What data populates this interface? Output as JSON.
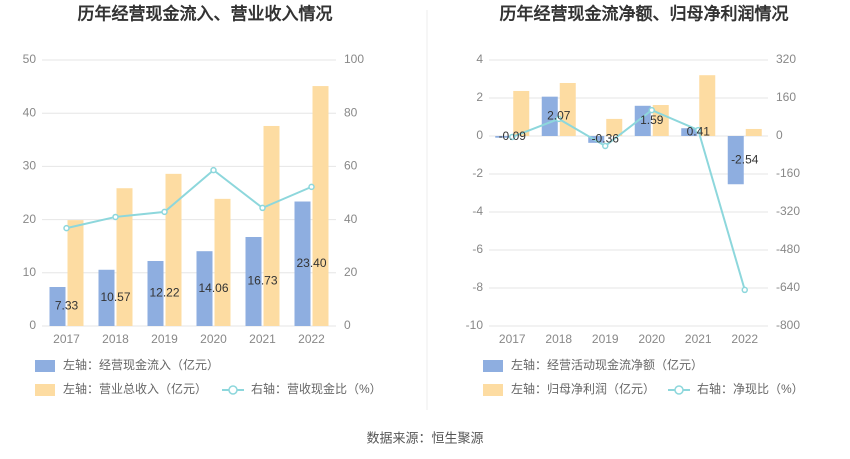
{
  "chart_data": [
    {
      "type": "bar",
      "title": "历年经营现金流入、营业收入情况",
      "categories": [
        "2017",
        "2018",
        "2019",
        "2020",
        "2021",
        "2022"
      ],
      "ylim": [
        0,
        50
      ],
      "yticks": [
        0,
        10,
        20,
        30,
        40,
        50
      ],
      "y2lim": [
        0,
        100
      ],
      "y2ticks": [
        0,
        20,
        40,
        60,
        80,
        100
      ],
      "grid": true,
      "series": [
        {
          "name": "左轴：经营现金流入（亿元）",
          "type": "bar",
          "color": "#8eaee0",
          "values": [
            7.33,
            10.57,
            12.22,
            14.06,
            16.73,
            23.4
          ],
          "value_labels": [
            "7.33",
            "10.57",
            "12.22",
            "14.06",
            "16.73",
            "23.40"
          ]
        },
        {
          "name": "左轴：营业总收入（亿元）",
          "type": "bar",
          "color": "#fddca2",
          "values": [
            19.9,
            25.9,
            28.6,
            23.9,
            37.6,
            45.1
          ]
        },
        {
          "name": "右轴：营收现金比（%）",
          "type": "line",
          "axis": "y2",
          "color": "#8dd7dc",
          "values": [
            36.8,
            41,
            42.9,
            58.6,
            44.4,
            52.3
          ]
        }
      ]
    },
    {
      "type": "bar",
      "title": "历年经营现金流净额、归母净利润情况",
      "categories": [
        "2017",
        "2018",
        "2019",
        "2020",
        "2021",
        "2022"
      ],
      "ylim": [
        -10,
        4
      ],
      "yticks": [
        4,
        2,
        0,
        -2,
        -4,
        -6,
        -8,
        -10
      ],
      "y2lim": [
        -800,
        320
      ],
      "y2ticks": [
        320,
        160,
        0,
        -160,
        -320,
        -480,
        -640,
        -800
      ],
      "grid": true,
      "series": [
        {
          "name": "左轴：经营活动现金流净额（亿元）",
          "type": "bar",
          "color": "#8eaee0",
          "values": [
            -0.09,
            2.07,
            -0.36,
            1.59,
            0.41,
            -2.54
          ],
          "value_labels": [
            "-0.09",
            "2.07",
            "-0.36",
            "1.59",
            "0.41",
            "-2.54"
          ]
        },
        {
          "name": "左轴：归母净利润（亿元）",
          "type": "bar",
          "color": "#fddca2",
          "values": [
            2.37,
            2.79,
            0.9,
            1.63,
            3.2,
            0.37
          ]
        },
        {
          "name": "右轴：净现比（%）",
          "type": "line",
          "axis": "y2",
          "color": "#8dd7dc",
          "values": [
            -4,
            72,
            -42,
            109,
            25,
            -648
          ]
        }
      ]
    }
  ],
  "source": "数据来源：恒生聚源"
}
